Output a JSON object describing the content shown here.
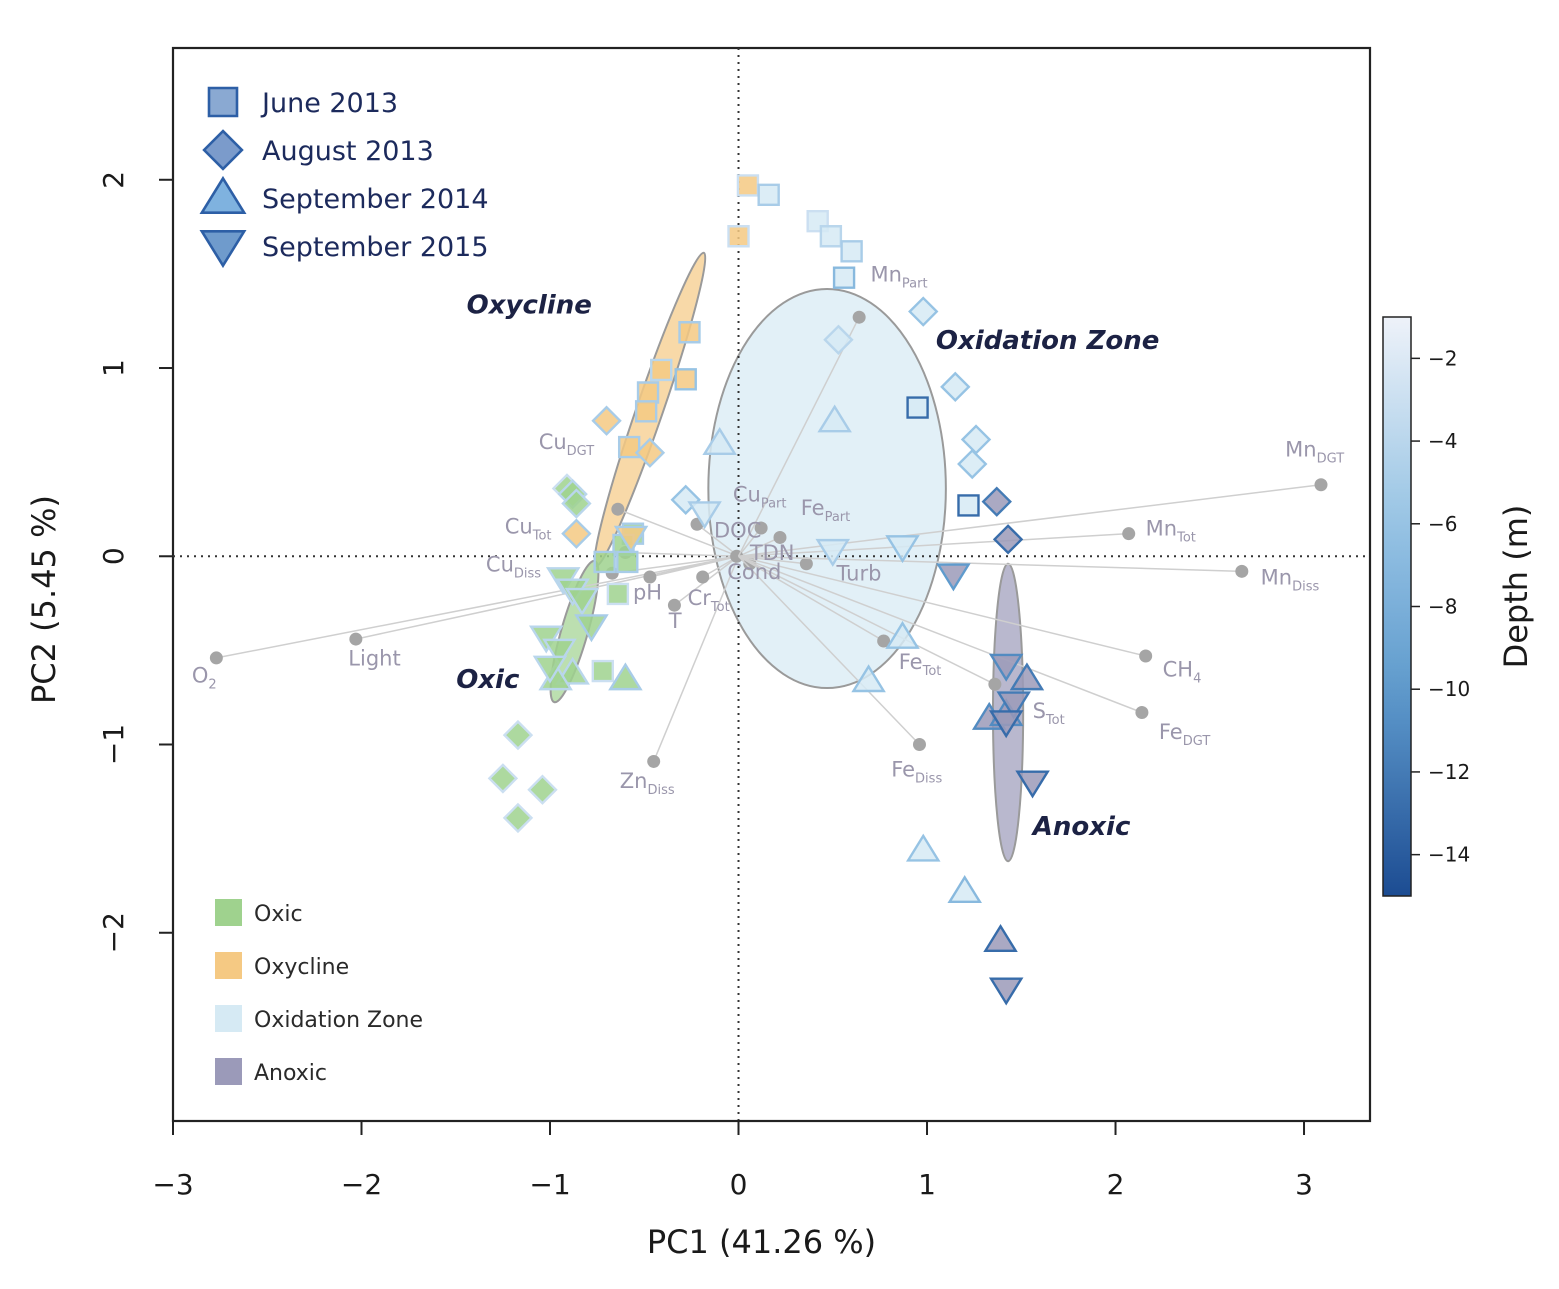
{
  "chart_data": {
    "type": "scatter",
    "subtype": "PCA biplot",
    "xlabel": "PC1  (41.26 %)",
    "ylabel": "PC2  (5.45 %)",
    "xlim": [
      -3,
      3.35
    ],
    "ylim": [
      -3.0,
      2.7
    ],
    "x_ticks": [
      -3,
      -2,
      -1,
      0,
      1,
      2,
      3
    ],
    "y_ticks": [
      -2,
      -1,
      0,
      1,
      2
    ],
    "x_tick_labels": [
      "−3",
      "−2",
      "−1",
      "0",
      "1",
      "2",
      "3"
    ],
    "y_tick_labels": [
      "−2",
      "−1",
      "0",
      "1",
      "2"
    ],
    "reference_lines": {
      "x": 0,
      "y": 0,
      "style": "dotted"
    },
    "colors": {
      "oxic": "#9fd28e",
      "oxycline": "#f5c983",
      "oxidation_zone": "#d6eaf4",
      "anoxic": "#9b9ab9",
      "depth_shallow": "#eef2f9",
      "depth_mid": "#77b0d9",
      "depth_deep": "#1c4c92",
      "loading": "#a5a5a5",
      "vector": "#cfcfcf"
    },
    "legend_campaigns": [
      {
        "label": "June 2013",
        "marker": "square"
      },
      {
        "label": "August 2013",
        "marker": "diamond"
      },
      {
        "label": "September 2014",
        "marker": "triangle-up"
      },
      {
        "label": "September 2015",
        "marker": "triangle-down"
      }
    ],
    "legend_zones": [
      {
        "label": "Oxic",
        "key": "oxic"
      },
      {
        "label": "Oxycline",
        "key": "oxycline"
      },
      {
        "label": "Oxidation Zone",
        "key": "oxidation_zone"
      },
      {
        "label": "Anoxic",
        "key": "anoxic"
      }
    ],
    "colorbar": {
      "title": "Depth (m)",
      "range": [
        -15,
        -1
      ],
      "ticks": [
        -2,
        -4,
        -6,
        -8,
        -10,
        -12,
        -14
      ],
      "tick_labels": [
        "−2",
        "−4",
        "−6",
        "−8",
        "−10",
        "−12",
        "−14"
      ]
    },
    "ellipses": [
      {
        "zone": "oxycline",
        "cx": -0.47,
        "cy": 0.78,
        "rx": 0.88,
        "ry": 0.07,
        "angle_deg": 71
      },
      {
        "zone": "oxic",
        "cx": -0.87,
        "cy": -0.4,
        "rx": 0.39,
        "ry": 0.07,
        "angle_deg": 74
      },
      {
        "zone": "oxidation_zone",
        "cx": 0.47,
        "cy": 0.36,
        "rx": 0.63,
        "ry": 1.06,
        "angle_deg": 0
      },
      {
        "zone": "anoxic",
        "cx": 1.43,
        "cy": -0.83,
        "rx": 0.08,
        "ry": 0.79,
        "angle_deg": 0
      }
    ],
    "zone_labels": [
      {
        "text": "Oxycline",
        "x": -1.11,
        "y": 1.29
      },
      {
        "text": "Oxidation Zone",
        "x": 1.64,
        "y": 1.1
      },
      {
        "text": "Oxic",
        "x": -1.33,
        "y": -0.7
      },
      {
        "text": "Anoxic",
        "x": 1.82,
        "y": -1.48
      }
    ],
    "loadings": [
      {
        "name": "O",
        "sub": "2",
        "x": -2.77,
        "y": -0.54,
        "lx": -2.9,
        "ly": -0.67
      },
      {
        "name": "Light",
        "sub": "",
        "x": -2.03,
        "y": -0.44,
        "lx": -2.07,
        "ly": -0.58
      },
      {
        "name": "Cu",
        "sub": "DGT",
        "x": -0.64,
        "y": 0.25,
        "lx": -1.06,
        "ly": 0.57
      },
      {
        "name": "Cu",
        "sub": "Tot",
        "x": -0.6,
        "y": 0.02,
        "lx": -1.24,
        "ly": 0.12
      },
      {
        "name": "Cu",
        "sub": "Diss",
        "x": -0.67,
        "y": -0.09,
        "lx": -1.34,
        "ly": -0.08
      },
      {
        "name": "pH",
        "sub": "",
        "x": -0.47,
        "y": -0.11,
        "lx": -0.56,
        "ly": -0.23
      },
      {
        "name": "T",
        "sub": "",
        "x": -0.34,
        "y": -0.26,
        "lx": -0.37,
        "ly": -0.38
      },
      {
        "name": "Cr",
        "sub": "Tot",
        "x": -0.19,
        "y": -0.11,
        "lx": -0.27,
        "ly": -0.26
      },
      {
        "name": "Zn",
        "sub": "Diss",
        "x": -0.45,
        "y": -1.09,
        "lx": -0.63,
        "ly": -1.23
      },
      {
        "name": "Cu",
        "sub": "Part",
        "x": 0.12,
        "y": 0.15,
        "lx": -0.03,
        "ly": 0.29
      },
      {
        "name": "Fe",
        "sub": "Part",
        "x": 0.22,
        "y": 0.1,
        "lx": 0.33,
        "ly": 0.22
      },
      {
        "name": "DOC",
        "sub": "",
        "x": -0.22,
        "y": 0.17,
        "lx": -0.13,
        "ly": 0.1
      },
      {
        "name": "TDN",
        "sub": "",
        "x": -0.01,
        "y": 0.0,
        "lx": 0.06,
        "ly": -0.02
      },
      {
        "name": "Cond",
        "sub": "",
        "x": 0.06,
        "y": -0.04,
        "lx": -0.06,
        "ly": -0.12
      },
      {
        "name": "Turb",
        "sub": "",
        "x": 0.36,
        "y": -0.04,
        "lx": 0.52,
        "ly": -0.13
      },
      {
        "name": "Mn",
        "sub": "Part",
        "x": 0.64,
        "y": 1.27,
        "lx": 0.7,
        "ly": 1.46
      },
      {
        "name": "Fe",
        "sub": "Tot",
        "x": 0.77,
        "y": -0.45,
        "lx": 0.85,
        "ly": -0.6
      },
      {
        "name": "Fe",
        "sub": "Diss",
        "x": 0.96,
        "y": -1.0,
        "lx": 0.81,
        "ly": -1.17
      },
      {
        "name": "Mn",
        "sub": "DGT",
        "x": 3.09,
        "y": 0.38,
        "lx": 2.9,
        "ly": 0.53
      },
      {
        "name": "Mn",
        "sub": "Tot",
        "x": 2.07,
        "y": 0.12,
        "lx": 2.16,
        "ly": 0.11
      },
      {
        "name": "Mn",
        "sub": "Diss",
        "x": 2.67,
        "y": -0.08,
        "lx": 2.77,
        "ly": -0.15
      },
      {
        "name": "CH",
        "sub": "4",
        "x": 2.16,
        "y": -0.53,
        "lx": 2.25,
        "ly": -0.64
      },
      {
        "name": "Fe",
        "sub": "DGT",
        "x": 2.14,
        "y": -0.83,
        "lx": 2.23,
        "ly": -0.97
      },
      {
        "name": "S",
        "sub": "Tot",
        "x": 1.36,
        "y": -0.68,
        "lx": 1.56,
        "ly": -0.86
      }
    ],
    "points": [
      {
        "campaign": "June 2013",
        "marker": "square",
        "x": 0.05,
        "y": 1.97,
        "zone": "oxycline",
        "depth": -3
      },
      {
        "campaign": "June 2013",
        "marker": "square",
        "x": 0.16,
        "y": 1.92,
        "zone": "oxidation_zone",
        "depth": -5
      },
      {
        "campaign": "June 2013",
        "marker": "square",
        "x": 0.0,
        "y": 1.7,
        "zone": "oxycline",
        "depth": -3
      },
      {
        "campaign": "June 2013",
        "marker": "square",
        "x": 0.42,
        "y": 1.78,
        "zone": "oxidation_zone",
        "depth": -3
      },
      {
        "campaign": "June 2013",
        "marker": "square",
        "x": 0.49,
        "y": 1.7,
        "zone": "oxidation_zone",
        "depth": -4
      },
      {
        "campaign": "June 2013",
        "marker": "square",
        "x": 0.6,
        "y": 1.62,
        "zone": "oxidation_zone",
        "depth": -5
      },
      {
        "campaign": "June 2013",
        "marker": "square",
        "x": 0.56,
        "y": 1.48,
        "zone": "oxidation_zone",
        "depth": -7
      },
      {
        "campaign": "June 2013",
        "marker": "square",
        "x": -0.26,
        "y": 1.19,
        "zone": "oxycline",
        "depth": -5
      },
      {
        "campaign": "June 2013",
        "marker": "square",
        "x": -0.41,
        "y": 0.99,
        "zone": "oxycline",
        "depth": -4
      },
      {
        "campaign": "June 2013",
        "marker": "square",
        "x": -0.28,
        "y": 0.94,
        "zone": "oxycline",
        "depth": -6
      },
      {
        "campaign": "June 2013",
        "marker": "square",
        "x": -0.48,
        "y": 0.87,
        "zone": "oxycline",
        "depth": -5
      },
      {
        "campaign": "June 2013",
        "marker": "square",
        "x": -0.49,
        "y": 0.77,
        "zone": "oxycline",
        "depth": -5
      },
      {
        "campaign": "June 2013",
        "marker": "square",
        "x": -0.58,
        "y": 0.58,
        "zone": "oxycline",
        "depth": -5
      },
      {
        "campaign": "June 2013",
        "marker": "square",
        "x": 0.95,
        "y": 0.79,
        "zone": "oxidation_zone",
        "depth": -13
      },
      {
        "campaign": "June 2013",
        "marker": "square",
        "x": 1.22,
        "y": 0.27,
        "zone": "oxidation_zone",
        "depth": -13
      },
      {
        "campaign": "June 2013",
        "marker": "square",
        "x": -0.56,
        "y": 0.12,
        "zone": "oxic",
        "depth": -5
      },
      {
        "campaign": "June 2013",
        "marker": "square",
        "x": -0.61,
        "y": 0.06,
        "zone": "oxic",
        "depth": -5
      },
      {
        "campaign": "June 2013",
        "marker": "square",
        "x": -0.71,
        "y": -0.03,
        "zone": "oxic",
        "depth": -5
      },
      {
        "campaign": "June 2013",
        "marker": "square",
        "x": -0.59,
        "y": -0.03,
        "zone": "oxic",
        "depth": -5
      },
      {
        "campaign": "June 2013",
        "marker": "square",
        "x": -0.64,
        "y": -0.2,
        "zone": "oxic",
        "depth": -3
      },
      {
        "campaign": "June 2013",
        "marker": "square",
        "x": -0.72,
        "y": -0.61,
        "zone": "oxic",
        "depth": -3
      },
      {
        "campaign": "August 2013",
        "marker": "diamond",
        "x": 0.98,
        "y": 1.3,
        "zone": "oxidation_zone",
        "depth": -6
      },
      {
        "campaign": "August 2013",
        "marker": "diamond",
        "x": 0.53,
        "y": 1.15,
        "zone": "oxidation_zone",
        "depth": -4
      },
      {
        "campaign": "August 2013",
        "marker": "diamond",
        "x": 1.15,
        "y": 0.9,
        "zone": "oxidation_zone",
        "depth": -6
      },
      {
        "campaign": "August 2013",
        "marker": "diamond",
        "x": -0.7,
        "y": 0.72,
        "zone": "oxycline",
        "depth": -5
      },
      {
        "campaign": "August 2013",
        "marker": "diamond",
        "x": 1.26,
        "y": 0.62,
        "zone": "oxidation_zone",
        "depth": -6
      },
      {
        "campaign": "August 2013",
        "marker": "diamond",
        "x": -0.47,
        "y": 0.55,
        "zone": "oxycline",
        "depth": -5
      },
      {
        "campaign": "August 2013",
        "marker": "diamond",
        "x": 1.24,
        "y": 0.49,
        "zone": "oxidation_zone",
        "depth": -6
      },
      {
        "campaign": "August 2013",
        "marker": "diamond",
        "x": -0.91,
        "y": 0.36,
        "zone": "oxic",
        "depth": -3
      },
      {
        "campaign": "August 2013",
        "marker": "diamond",
        "x": -0.88,
        "y": 0.33,
        "zone": "oxic",
        "depth": -4
      },
      {
        "campaign": "August 2013",
        "marker": "diamond",
        "x": -0.86,
        "y": 0.28,
        "zone": "oxic",
        "depth": -4
      },
      {
        "campaign": "August 2013",
        "marker": "diamond",
        "x": -0.28,
        "y": 0.3,
        "zone": "oxidation_zone",
        "depth": -6
      },
      {
        "campaign": "August 2013",
        "marker": "diamond",
        "x": 1.37,
        "y": 0.29,
        "zone": "anoxic",
        "depth": -12
      },
      {
        "campaign": "August 2013",
        "marker": "diamond",
        "x": -0.86,
        "y": 0.12,
        "zone": "oxycline",
        "depth": -5
      },
      {
        "campaign": "August 2013",
        "marker": "diamond",
        "x": 1.43,
        "y": 0.09,
        "zone": "anoxic",
        "depth": -13
      },
      {
        "campaign": "August 2013",
        "marker": "diamond",
        "x": -1.17,
        "y": -0.95,
        "zone": "oxic",
        "depth": -3
      },
      {
        "campaign": "August 2013",
        "marker": "diamond",
        "x": -1.25,
        "y": -1.18,
        "zone": "oxic",
        "depth": -3
      },
      {
        "campaign": "August 2013",
        "marker": "diamond",
        "x": -1.04,
        "y": -1.24,
        "zone": "oxic",
        "depth": -3
      },
      {
        "campaign": "August 2013",
        "marker": "diamond",
        "x": -1.17,
        "y": -1.39,
        "zone": "oxic",
        "depth": -3
      },
      {
        "campaign": "September 2014",
        "marker": "triangle-up",
        "x": 0.51,
        "y": 0.72,
        "zone": "oxidation_zone",
        "depth": -5
      },
      {
        "campaign": "September 2014",
        "marker": "triangle-up",
        "x": -0.1,
        "y": 0.6,
        "zone": "oxidation_zone",
        "depth": -5
      },
      {
        "campaign": "September 2014",
        "marker": "triangle-up",
        "x": 0.87,
        "y": -0.43,
        "zone": "oxidation_zone",
        "depth": -6
      },
      {
        "campaign": "September 2014",
        "marker": "triangle-up",
        "x": -0.6,
        "y": -0.65,
        "zone": "oxic",
        "depth": -5
      },
      {
        "campaign": "September 2014",
        "marker": "triangle-up",
        "x": 0.69,
        "y": -0.66,
        "zone": "oxidation_zone",
        "depth": -6
      },
      {
        "campaign": "September 2014",
        "marker": "triangle-up",
        "x": 1.53,
        "y": -0.65,
        "zone": "anoxic",
        "depth": -12
      },
      {
        "campaign": "September 2014",
        "marker": "triangle-up",
        "x": 1.33,
        "y": -0.86,
        "zone": "anoxic",
        "depth": -11
      },
      {
        "campaign": "September 2014",
        "marker": "triangle-up",
        "x": 1.42,
        "y": -0.84,
        "zone": "anoxic",
        "depth": -11
      },
      {
        "campaign": "September 2014",
        "marker": "triangle-up",
        "x": 0.98,
        "y": -1.56,
        "zone": "oxidation_zone",
        "depth": -6
      },
      {
        "campaign": "September 2014",
        "marker": "triangle-up",
        "x": 1.2,
        "y": -1.78,
        "zone": "oxidation_zone",
        "depth": -7
      },
      {
        "campaign": "September 2014",
        "marker": "triangle-up",
        "x": 1.39,
        "y": -2.04,
        "zone": "anoxic",
        "depth": -13
      },
      {
        "campaign": "September 2014",
        "marker": "triangle-up",
        "x": -0.88,
        "y": -0.62,
        "zone": "oxic",
        "depth": -4
      },
      {
        "campaign": "September 2014",
        "marker": "triangle-up",
        "x": -0.97,
        "y": -0.65,
        "zone": "oxic",
        "depth": -4
      },
      {
        "campaign": "September 2015",
        "marker": "triangle-down",
        "x": -0.18,
        "y": 0.23,
        "zone": "oxidation_zone",
        "depth": -5
      },
      {
        "campaign": "September 2015",
        "marker": "triangle-down",
        "x": -0.57,
        "y": 0.1,
        "zone": "oxycline",
        "depth": -5
      },
      {
        "campaign": "September 2015",
        "marker": "triangle-down",
        "x": 0.5,
        "y": 0.03,
        "zone": "oxidation_zone",
        "depth": -5
      },
      {
        "campaign": "September 2015",
        "marker": "triangle-down",
        "x": 0.87,
        "y": 0.05,
        "zone": "oxidation_zone",
        "depth": -6
      },
      {
        "campaign": "September 2015",
        "marker": "triangle-down",
        "x": 1.14,
        "y": -0.1,
        "zone": "anoxic",
        "depth": -10
      },
      {
        "campaign": "September 2015",
        "marker": "triangle-down",
        "x": -0.93,
        "y": -0.12,
        "zone": "oxic",
        "depth": -4
      },
      {
        "campaign": "September 2015",
        "marker": "triangle-down",
        "x": -0.88,
        "y": -0.18,
        "zone": "oxic",
        "depth": -4
      },
      {
        "campaign": "September 2015",
        "marker": "triangle-down",
        "x": -0.83,
        "y": -0.23,
        "zone": "oxic",
        "depth": -4
      },
      {
        "campaign": "September 2015",
        "marker": "triangle-down",
        "x": -0.78,
        "y": -0.37,
        "zone": "oxic",
        "depth": -5
      },
      {
        "campaign": "September 2015",
        "marker": "triangle-down",
        "x": -1.02,
        "y": -0.43,
        "zone": "oxic",
        "depth": -4
      },
      {
        "campaign": "September 2015",
        "marker": "triangle-down",
        "x": -0.95,
        "y": -0.5,
        "zone": "oxic",
        "depth": -4
      },
      {
        "campaign": "September 2015",
        "marker": "triangle-down",
        "x": -1.0,
        "y": -0.59,
        "zone": "oxic",
        "depth": -4
      },
      {
        "campaign": "September 2015",
        "marker": "triangle-down",
        "x": 1.42,
        "y": -0.58,
        "zone": "anoxic",
        "depth": -11
      },
      {
        "campaign": "September 2015",
        "marker": "triangle-down",
        "x": 1.46,
        "y": -0.78,
        "zone": "anoxic",
        "depth": -12
      },
      {
        "campaign": "September 2015",
        "marker": "triangle-down",
        "x": 1.42,
        "y": -0.88,
        "zone": "anoxic",
        "depth": -13
      },
      {
        "campaign": "September 2015",
        "marker": "triangle-down",
        "x": 1.56,
        "y": -1.2,
        "zone": "anoxic",
        "depth": -13
      },
      {
        "campaign": "September 2015",
        "marker": "triangle-down",
        "x": 1.42,
        "y": -2.3,
        "zone": "anoxic",
        "depth": -13
      }
    ]
  }
}
